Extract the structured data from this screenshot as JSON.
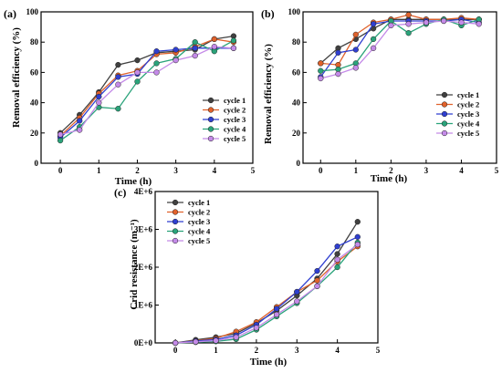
{
  "chart_data": [
    {
      "type": "line",
      "panel_label": "(a)",
      "xlabel": "Time (h)",
      "ylabel": "Removal efficiency (%)",
      "xlim": [
        -0.5,
        5
      ],
      "ylim": [
        0,
        100
      ],
      "xticks": [
        "0",
        "1",
        "2",
        "3",
        "4",
        "5"
      ],
      "yticks": [
        "0",
        "20",
        "40",
        "60",
        "80",
        "100"
      ],
      "legend_position": "bottom-right",
      "x": [
        0,
        0.5,
        1,
        1.5,
        2,
        2.5,
        3,
        3.5,
        4,
        4.5
      ],
      "series": [
        {
          "name": "cycle 1",
          "color": "#404040",
          "values": [
            20,
            32,
            47,
            65,
            68,
            73,
            74,
            75,
            82,
            84
          ]
        },
        {
          "name": "cycle 2",
          "color": "#e0622c",
          "values": [
            18,
            30,
            46,
            58,
            61,
            72,
            73,
            77,
            82,
            80
          ]
        },
        {
          "name": "cycle 3",
          "color": "#2f3fd0",
          "values": [
            17,
            28,
            44,
            57,
            59,
            74,
            75,
            76,
            76,
            76
          ]
        },
        {
          "name": "cycle 4",
          "color": "#2aa37a",
          "values": [
            15,
            24,
            37,
            36,
            54,
            66,
            69,
            80,
            74,
            81
          ]
        },
        {
          "name": "cycle 5",
          "color": "#c48ae8",
          "values": [
            19,
            22,
            40,
            52,
            60,
            60,
            68,
            71,
            77,
            76
          ]
        }
      ]
    },
    {
      "type": "line",
      "panel_label": "(b)",
      "xlabel": "Time (h)",
      "ylabel": "Removal efficiency (%)",
      "xlim": [
        -0.5,
        5
      ],
      "ylim": [
        0,
        100
      ],
      "xticks": [
        "0",
        "1",
        "2",
        "3",
        "4",
        "5"
      ],
      "yticks": [
        "0",
        "20",
        "40",
        "60",
        "80",
        "100"
      ],
      "legend_position": "bottom-right",
      "x": [
        0,
        0.5,
        1,
        1.5,
        2,
        2.5,
        3,
        3.5,
        4,
        4.5
      ],
      "series": [
        {
          "name": "cycle 1",
          "color": "#404040",
          "values": [
            66,
            76,
            82,
            89,
            95,
            95,
            95,
            95,
            95,
            95
          ]
        },
        {
          "name": "cycle 2",
          "color": "#e0622c",
          "values": [
            66,
            65,
            85,
            93,
            95,
            98,
            95,
            95,
            96,
            95
          ]
        },
        {
          "name": "cycle 3",
          "color": "#2f3fd0",
          "values": [
            57,
            73,
            75,
            92,
            94,
            94,
            94,
            94,
            95,
            93
          ]
        },
        {
          "name": "cycle 4",
          "color": "#2aa37a",
          "values": [
            61,
            62,
            66,
            82,
            94,
            86,
            92,
            95,
            91,
            95
          ]
        },
        {
          "name": "cycle 5",
          "color": "#c48ae8",
          "values": [
            56,
            59,
            63,
            76,
            91,
            92,
            93,
            94,
            93,
            92
          ]
        }
      ]
    },
    {
      "type": "line",
      "panel_label": "(c)",
      "xlabel": "Time (h)",
      "ylabel": "Crid resistance (m⁻¹)",
      "xlim": [
        -0.5,
        5
      ],
      "ylim": [
        0,
        4000000
      ],
      "xticks": [
        "0",
        "1",
        "2",
        "3",
        "4",
        "5"
      ],
      "yticks": [
        "0E+0",
        "1E+6",
        "2E+6",
        "3E+6",
        "4E+6"
      ],
      "legend_position": "top-left",
      "x": [
        0,
        0.5,
        1,
        1.5,
        2,
        2.5,
        3,
        3.5,
        4,
        4.5
      ],
      "series": [
        {
          "name": "cycle 1",
          "color": "#404040",
          "values": [
            0,
            80000,
            150000,
            250000,
            520000,
            850000,
            1250000,
            1700000,
            2350000,
            3200000
          ]
        },
        {
          "name": "cycle 2",
          "color": "#e0622c",
          "values": [
            0,
            60000,
            120000,
            300000,
            550000,
            950000,
            1350000,
            1650000,
            2150000,
            2550000
          ]
        },
        {
          "name": "cycle 3",
          "color": "#2f3fd0",
          "values": [
            0,
            50000,
            90000,
            200000,
            480000,
            900000,
            1350000,
            1900000,
            2550000,
            2800000
          ]
        },
        {
          "name": "cycle 4",
          "color": "#2aa37a",
          "values": [
            0,
            20000,
            40000,
            100000,
            350000,
            700000,
            1050000,
            1500000,
            2000000,
            2650000
          ]
        },
        {
          "name": "cycle 5",
          "color": "#c48ae8",
          "values": [
            0,
            30000,
            60000,
            150000,
            400000,
            750000,
            1100000,
            1500000,
            2200000,
            2600000
          ]
        }
      ]
    }
  ]
}
